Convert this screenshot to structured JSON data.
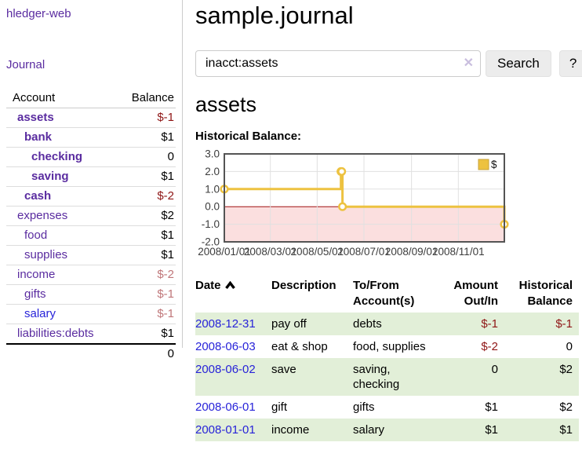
{
  "app": {
    "brand": "hledger-web"
  },
  "nav": {
    "journal_label": "Journal"
  },
  "sidebar": {
    "header": {
      "account": "Account",
      "balance": "Balance"
    },
    "rows": [
      {
        "name": "assets",
        "depth": 1,
        "balance": "$-1",
        "bold": true,
        "balance_tone": "neg-strong",
        "link_tone": "visited"
      },
      {
        "name": "bank",
        "depth": 2,
        "balance": "$1",
        "bold": true,
        "balance_tone": "plain",
        "link_tone": "visited"
      },
      {
        "name": "checking",
        "depth": 3,
        "balance": "0",
        "bold": true,
        "balance_tone": "plain",
        "link_tone": "visited"
      },
      {
        "name": "saving",
        "depth": 3,
        "balance": "$1",
        "bold": true,
        "balance_tone": "plain",
        "link_tone": "visited"
      },
      {
        "name": "cash",
        "depth": 2,
        "balance": "$-2",
        "bold": true,
        "balance_tone": "neg-strong",
        "link_tone": "visited"
      },
      {
        "name": "expenses",
        "depth": 1,
        "balance": "$2",
        "bold": false,
        "balance_tone": "plain",
        "link_tone": "visited"
      },
      {
        "name": "food",
        "depth": 2,
        "balance": "$1",
        "bold": false,
        "balance_tone": "plain",
        "link_tone": "visited"
      },
      {
        "name": "supplies",
        "depth": 2,
        "balance": "$1",
        "bold": false,
        "balance_tone": "plain",
        "link_tone": "visited"
      },
      {
        "name": "income",
        "depth": 1,
        "balance": "$-2",
        "bold": false,
        "balance_tone": "soft",
        "link_tone": "visited"
      },
      {
        "name": "gifts",
        "depth": 2,
        "balance": "$-1",
        "bold": false,
        "balance_tone": "soft",
        "link_tone": "visited"
      },
      {
        "name": "salary",
        "depth": 2,
        "balance": "$-1",
        "bold": false,
        "balance_tone": "soft",
        "link_tone": "unvisited"
      },
      {
        "name": "liabilities:debts",
        "depth": 1,
        "balance": "$1",
        "bold": false,
        "balance_tone": "plain",
        "link_tone": "visited"
      }
    ],
    "total": "0"
  },
  "header": {
    "title": "sample.journal"
  },
  "search": {
    "value": "inacct:assets",
    "clear_icon": "✕",
    "button_label": "Search",
    "help_label": "?"
  },
  "report": {
    "account_title": "assets",
    "chart_label": "Historical Balance:"
  },
  "chart_data": {
    "type": "line",
    "step": true,
    "title": "Historical Balance",
    "series": [
      {
        "name": "$",
        "color": "#EDC240",
        "points": [
          [
            "2008-01-01",
            1
          ],
          [
            "2008-06-01",
            2
          ],
          [
            "2008-06-02",
            2
          ],
          [
            "2008-06-03",
            0
          ],
          [
            "2008-12-31",
            -1
          ]
        ]
      }
    ],
    "ylim": [
      -2,
      3
    ],
    "y_ticks": [
      "3.0",
      "2.0",
      "1.0",
      "0.0",
      "-1.0",
      "-2.0"
    ],
    "x_ticks": [
      "2008/01/01",
      "2008/03/01",
      "2008/05/01",
      "2008/07/01",
      "2008/09/01",
      "2008/11/01"
    ],
    "xrange": [
      "2008-01-01",
      "2008-12-31"
    ],
    "legend": "$",
    "legend_position": "top-right",
    "grid": true,
    "negative_region_color": "#fbdfdf",
    "zero_line_color": "#a01010",
    "grid_color": "#e0e0e0",
    "border_color": "#545454"
  },
  "txn_table": {
    "headers": {
      "date": "Date",
      "description": "Description",
      "accounts": "To/From Account(s)",
      "amount": "Amount Out/In",
      "balance": "Historical Balance"
    },
    "rows": [
      {
        "date": "2008-12-31",
        "description": "pay off",
        "accounts": "debts",
        "amount": "$-1",
        "balance": "$-1",
        "amount_negative": true,
        "balance_negative": true,
        "shaded": true
      },
      {
        "date": "2008-06-03",
        "description": "eat & shop",
        "accounts": "food, supplies",
        "amount": "$-2",
        "balance": "0",
        "amount_negative": true,
        "balance_negative": false,
        "shaded": false
      },
      {
        "date": "2008-06-02",
        "description": "save",
        "accounts": "saving, checking",
        "amount": "0",
        "balance": "$2",
        "amount_negative": false,
        "balance_negative": false,
        "shaded": true
      },
      {
        "date": "2008-06-01",
        "description": "gift",
        "accounts": "gifts",
        "amount": "$1",
        "balance": "$2",
        "amount_negative": false,
        "balance_negative": false,
        "shaded": false
      },
      {
        "date": "2008-01-01",
        "description": "income",
        "accounts": "salary",
        "amount": "$1",
        "balance": "$1",
        "amount_negative": false,
        "balance_negative": false,
        "shaded": true
      }
    ]
  }
}
